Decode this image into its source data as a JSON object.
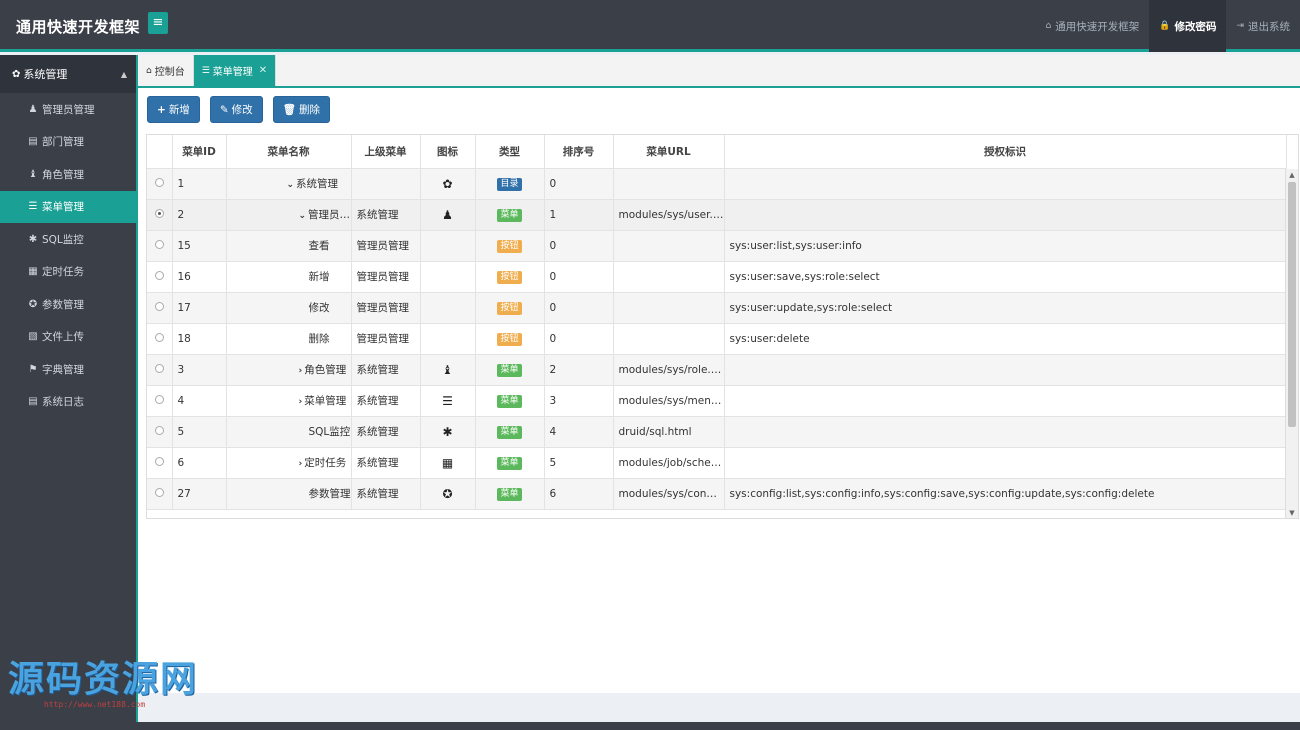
{
  "header": {
    "logo": "通用快速开发框架",
    "toggle_icon": "≡",
    "nav": [
      {
        "icon": "home-icon",
        "glyph": "⌂",
        "label": "通用快速开发框架"
      },
      {
        "icon": "lock-icon",
        "glyph": "🔒",
        "label": "修改密码"
      },
      {
        "icon": "logout-icon",
        "glyph": "⇥",
        "label": "退出系统"
      }
    ]
  },
  "sidebar": {
    "group": {
      "icon": "gear-icon",
      "glyph": "✿",
      "label": "系统管理",
      "caret": "▲"
    },
    "items": [
      {
        "icon": "user-icon",
        "glyph": "♟",
        "label": "管理员管理"
      },
      {
        "icon": "file-icon",
        "glyph": "▤",
        "label": "部门管理"
      },
      {
        "icon": "user-secret-icon",
        "glyph": "♝",
        "label": "角色管理"
      },
      {
        "icon": "list-icon",
        "glyph": "☰",
        "label": "菜单管理"
      },
      {
        "icon": "bug-icon",
        "glyph": "✱",
        "label": "SQL监控"
      },
      {
        "icon": "tasks-icon",
        "glyph": "▦",
        "label": "定时任务"
      },
      {
        "icon": "cog-icon",
        "glyph": "✪",
        "label": "参数管理"
      },
      {
        "icon": "file-image-icon",
        "glyph": "▧",
        "label": "文件上传"
      },
      {
        "icon": "bookmark-icon",
        "glyph": "⚑",
        "label": "字典管理"
      },
      {
        "icon": "file-text-icon",
        "glyph": "▤",
        "label": "系统日志"
      }
    ]
  },
  "tabs": [
    {
      "icon": "home-icon",
      "glyph": "⌂",
      "label": "控制台"
    },
    {
      "icon": "list-icon",
      "glyph": "☰",
      "label": "菜单管理",
      "close": "✕"
    }
  ],
  "toolbar": {
    "add": {
      "glyph": "+",
      "label": "新增"
    },
    "edit": {
      "glyph": "✎",
      "label": "修改"
    },
    "delete": {
      "glyph": "🗑",
      "label": "删除"
    }
  },
  "table": {
    "columns": [
      "",
      "菜单ID",
      "菜单名称",
      "上级菜单",
      "图标",
      "类型",
      "排序号",
      "菜单URL",
      "授权标识"
    ],
    "rows": [
      {
        "selected": false,
        "id": "1",
        "arrow": "⌄",
        "name": "系统管理",
        "indent": 0,
        "parent": "",
        "icon": "gear-icon",
        "glyph": "✿",
        "type": "目录",
        "type_kind": "dir",
        "order": "0",
        "url": "",
        "perms": ""
      },
      {
        "selected": true,
        "id": "2",
        "arrow": "⌄",
        "name": "管理员管理",
        "indent": 1,
        "parent": "系统管理",
        "icon": "user-icon",
        "glyph": "♟",
        "type": "菜单",
        "type_kind": "menu",
        "order": "1",
        "url": "modules/sys/user.html",
        "perms": ""
      },
      {
        "selected": false,
        "id": "15",
        "arrow": "",
        "name": "查看",
        "indent": 2,
        "parent": "管理员管理",
        "icon": "",
        "glyph": "",
        "type": "按钮",
        "type_kind": "btnt",
        "order": "0",
        "url": "",
        "perms": "sys:user:list,sys:user:info"
      },
      {
        "selected": false,
        "id": "16",
        "arrow": "",
        "name": "新增",
        "indent": 2,
        "parent": "管理员管理",
        "icon": "",
        "glyph": "",
        "type": "按钮",
        "type_kind": "btnt",
        "order": "0",
        "url": "",
        "perms": "sys:user:save,sys:role:select"
      },
      {
        "selected": false,
        "id": "17",
        "arrow": "",
        "name": "修改",
        "indent": 2,
        "parent": "管理员管理",
        "icon": "",
        "glyph": "",
        "type": "按钮",
        "type_kind": "btnt",
        "order": "0",
        "url": "",
        "perms": "sys:user:update,sys:role:select"
      },
      {
        "selected": false,
        "id": "18",
        "arrow": "",
        "name": "删除",
        "indent": 2,
        "parent": "管理员管理",
        "icon": "",
        "glyph": "",
        "type": "按钮",
        "type_kind": "btnt",
        "order": "0",
        "url": "",
        "perms": "sys:user:delete"
      },
      {
        "selected": false,
        "id": "3",
        "arrow": "›",
        "name": "角色管理",
        "indent": 1,
        "parent": "系统管理",
        "icon": "user-secret-icon",
        "glyph": "♝",
        "type": "菜单",
        "type_kind": "menu",
        "order": "2",
        "url": "modules/sys/role.html",
        "perms": ""
      },
      {
        "selected": false,
        "id": "4",
        "arrow": "›",
        "name": "菜单管理",
        "indent": 1,
        "parent": "系统管理",
        "icon": "list-icon",
        "glyph": "☰",
        "type": "菜单",
        "type_kind": "menu",
        "order": "3",
        "url": "modules/sys/menu.h...",
        "perms": ""
      },
      {
        "selected": false,
        "id": "5",
        "arrow": "",
        "name": "SQL监控",
        "indent": 2,
        "parent": "系统管理",
        "icon": "bug-icon",
        "glyph": "✱",
        "type": "菜单",
        "type_kind": "menu",
        "order": "4",
        "url": "druid/sql.html",
        "perms": ""
      },
      {
        "selected": false,
        "id": "6",
        "arrow": "›",
        "name": "定时任务",
        "indent": 1,
        "parent": "系统管理",
        "icon": "tasks-icon",
        "glyph": "▦",
        "type": "菜单",
        "type_kind": "menu",
        "order": "5",
        "url": "modules/job/schedul...",
        "perms": ""
      },
      {
        "selected": false,
        "id": "27",
        "arrow": "",
        "name": "参数管理",
        "indent": 2,
        "parent": "系统管理",
        "icon": "cog-icon",
        "glyph": "✪",
        "type": "菜单",
        "type_kind": "menu",
        "order": "6",
        "url": "modules/sys/config....",
        "perms": "sys:config:list,sys:config:info,sys:config:save,sys:config:update,sys:config:delete"
      }
    ]
  },
  "watermark": {
    "text": "源码资源网",
    "url": "http://www.net188.com"
  },
  "colors": {
    "accent": "#1aa094",
    "primary": "#3071a9",
    "menu": "#5cb85c",
    "button": "#f0ad4e",
    "dark": "#3a3f48"
  }
}
